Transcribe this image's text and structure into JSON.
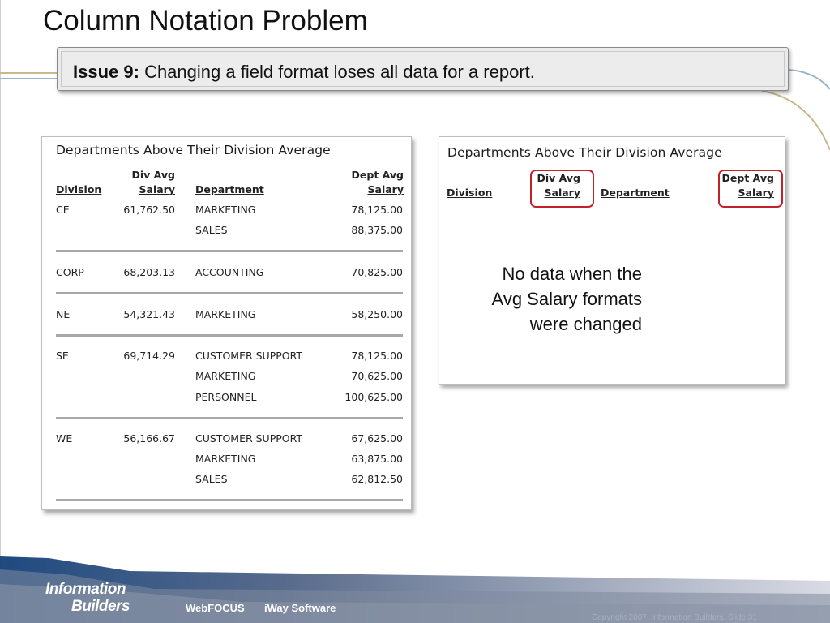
{
  "slide": {
    "title": "Column Notation Problem",
    "issue": {
      "label": "Issue 9:",
      "text": "Changing a field format loses all data for a report."
    },
    "note": {
      "line1": "No data when the",
      "line2": "Avg Salary formats",
      "line3": "were changed"
    },
    "accent_color": "#c4202a"
  },
  "left_report": {
    "title": "Departments Above Their Division Average",
    "headers": {
      "division": "Division",
      "div_avg_1": "Div Avg",
      "div_avg_2": "Salary",
      "department": "Department",
      "dept_avg_1": "Dept Avg",
      "dept_avg_2": "Salary"
    },
    "rows": [
      {
        "division": "CE",
        "div_avg": "61,762.50",
        "department": "MARKETING",
        "dept_avg": "78,125.00"
      },
      {
        "division": "",
        "div_avg": "",
        "department": "SALES",
        "dept_avg": "88,375.00"
      },
      {
        "division": "CORP",
        "div_avg": "68,203.13",
        "department": "ACCOUNTING",
        "dept_avg": "70,825.00"
      },
      {
        "division": "NE",
        "div_avg": "54,321.43",
        "department": "MARKETING",
        "dept_avg": "58,250.00"
      },
      {
        "division": "SE",
        "div_avg": "69,714.29",
        "department": "CUSTOMER SUPPORT",
        "dept_avg": "78,125.00"
      },
      {
        "division": "",
        "div_avg": "",
        "department": "MARKETING",
        "dept_avg": "70,625.00"
      },
      {
        "division": "",
        "div_avg": "",
        "department": "PERSONNEL",
        "dept_avg": "100,625.00"
      },
      {
        "division": "WE",
        "div_avg": "56,166.67",
        "department": "CUSTOMER SUPPORT",
        "dept_avg": "67,625.00"
      },
      {
        "division": "",
        "div_avg": "",
        "department": "MARKETING",
        "dept_avg": "63,875.00"
      },
      {
        "division": "",
        "div_avg": "",
        "department": "SALES",
        "dept_avg": "62,812.50"
      }
    ]
  },
  "right_report": {
    "title": "Departments Above Their Division Average",
    "headers": {
      "division": "Division",
      "div_avg_1": "Div Avg",
      "div_avg_2": "Salary",
      "department": "Department",
      "dept_avg_1": "Dept Avg",
      "dept_avg_2": "Salary"
    }
  },
  "footer": {
    "logo_line1": "Information",
    "logo_line2": "Builders",
    "link1": "WebFOCUS",
    "link2": "iWay Software",
    "copyright": "Copyright 2007, Information Builders. Slide 31"
  }
}
